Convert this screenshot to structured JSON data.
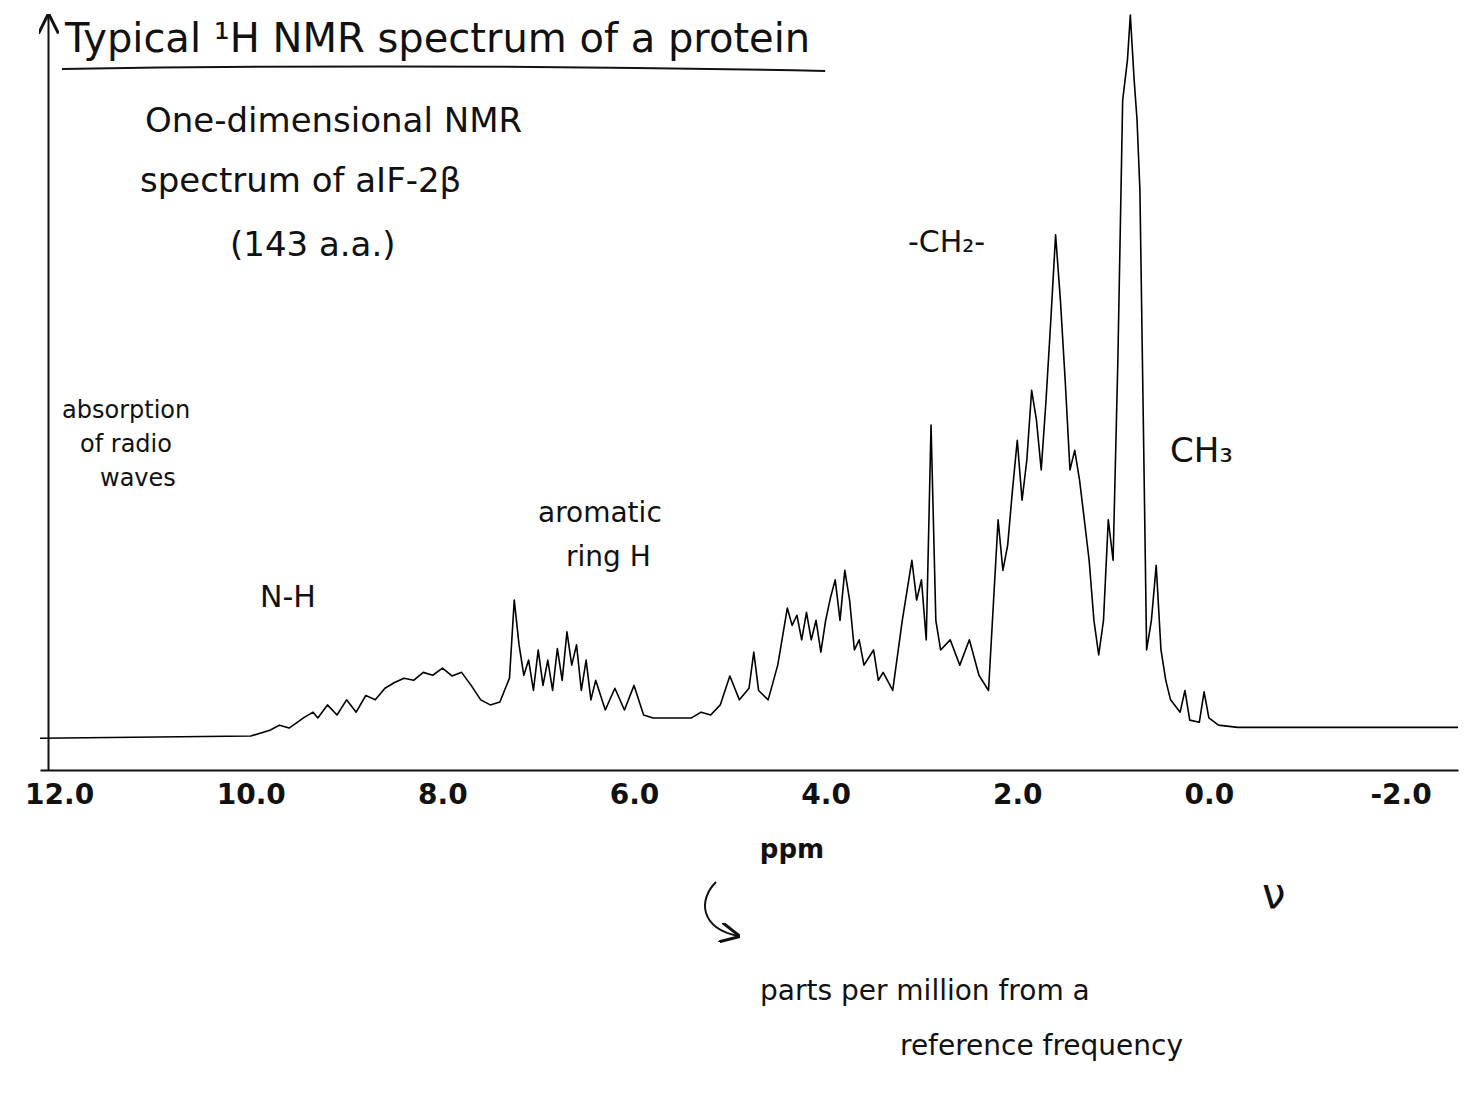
{
  "chart_data": {
    "type": "line",
    "title": "Typical ¹H NMR spectrum of a protein",
    "subtitle": [
      "One-dimensional NMR",
      "spectrum of aIF-2β",
      "(143 a.a.)"
    ],
    "ylabel": "absorption of radio waves",
    "xlabel": "ppm",
    "annotations": [
      "N-H",
      "aromatic ring H",
      "-CH₂-",
      "CH₃",
      "parts per million from a reference frequency",
      "ν"
    ],
    "color": "#000000",
    "grid": false,
    "tick_labels": "x",
    "xlim": [
      12.2,
      -2.6
    ],
    "ylim": [
      -4.4,
      100
    ],
    "xticks": [
      {
        "value": 12,
        "label": "12.0"
      },
      {
        "value": 10,
        "label": "10.0"
      },
      {
        "value": 8,
        "label": "8.0"
      },
      {
        "value": 6,
        "label": "6.0"
      },
      {
        "value": 4,
        "label": "4.0"
      },
      {
        "value": 2,
        "label": "2.0"
      },
      {
        "value": 0,
        "label": "0.0"
      },
      {
        "value": -2,
        "label": "-2.0"
      }
    ],
    "x": [
      12.2,
      10.0,
      9.8,
      9.7,
      9.6,
      9.45,
      9.35,
      9.3,
      9.2,
      9.1,
      9.0,
      8.9,
      8.8,
      8.7,
      8.6,
      8.5,
      8.4,
      8.3,
      8.2,
      8.1,
      8.0,
      7.9,
      7.8,
      7.7,
      7.6,
      7.5,
      7.4,
      7.3,
      7.25,
      7.2,
      7.15,
      7.1,
      7.05,
      7.0,
      6.95,
      6.9,
      6.85,
      6.8,
      6.75,
      6.7,
      6.65,
      6.6,
      6.55,
      6.5,
      6.45,
      6.4,
      6.3,
      6.2,
      6.1,
      6.0,
      5.9,
      5.8,
      5.6,
      5.4,
      5.3,
      5.2,
      5.1,
      5.0,
      4.9,
      4.8,
      4.75,
      4.7,
      4.6,
      4.5,
      4.4,
      4.35,
      4.3,
      4.25,
      4.2,
      4.15,
      4.1,
      4.05,
      4.0,
      3.95,
      3.9,
      3.85,
      3.8,
      3.75,
      3.7,
      3.65,
      3.6,
      3.5,
      3.45,
      3.4,
      3.3,
      3.2,
      3.1,
      3.05,
      3.0,
      2.95,
      2.9,
      2.85,
      2.8,
      2.7,
      2.6,
      2.5,
      2.4,
      2.3,
      2.2,
      2.15,
      2.1,
      2.05,
      2.0,
      1.95,
      1.9,
      1.85,
      1.8,
      1.75,
      1.7,
      1.65,
      1.6,
      1.55,
      1.5,
      1.45,
      1.4,
      1.35,
      1.3,
      1.25,
      1.2,
      1.15,
      1.1,
      1.05,
      1.0,
      0.95,
      0.9,
      0.85,
      0.82,
      0.78,
      0.75,
      0.72,
      0.68,
      0.65,
      0.6,
      0.55,
      0.5,
      0.45,
      0.4,
      0.3,
      0.25,
      0.2,
      0.1,
      0.05,
      0.0,
      -0.1,
      -0.3,
      -1.0,
      -2.6
    ],
    "values": [
      0,
      0.3,
      1.1,
      1.8,
      1.4,
      2.8,
      3.6,
      2.8,
      4.6,
      3.2,
      5.3,
      3.6,
      5.9,
      5.3,
      6.9,
      7.7,
      8.3,
      8.0,
      9.1,
      8.7,
      9.7,
      8.6,
      9.1,
      7.3,
      5.3,
      4.6,
      5.0,
      8.3,
      19.1,
      12.9,
      8.7,
      10.8,
      6.6,
      12.2,
      7.3,
      10.8,
      6.6,
      12.4,
      8.0,
      14.7,
      10.1,
      12.9,
      6.6,
      10.8,
      5.3,
      8.0,
      3.9,
      6.9,
      3.9,
      7.3,
      3.2,
      2.8,
      2.8,
      2.8,
      3.6,
      3.2,
      4.6,
      8.6,
      5.3,
      6.9,
      11.9,
      6.6,
      5.3,
      10.1,
      18.0,
      15.6,
      17.0,
      13.6,
      17.4,
      13.6,
      16.3,
      11.9,
      16.3,
      19.4,
      21.9,
      16.3,
      23.2,
      19.1,
      12.2,
      13.6,
      10.1,
      12.2,
      8.0,
      9.1,
      6.6,
      16.3,
      24.6,
      19.1,
      21.9,
      13.6,
      43.3,
      16.3,
      12.2,
      13.6,
      10.1,
      13.6,
      8.7,
      6.6,
      30.2,
      23.2,
      26.7,
      34.3,
      41.2,
      32.9,
      38.5,
      48.1,
      44.0,
      37.1,
      46.7,
      57.8,
      69.6,
      60.6,
      49.5,
      37.1,
      39.8,
      35.7,
      30.2,
      24.6,
      16.3,
      11.5,
      16.3,
      30.2,
      24.6,
      52.3,
      88.2,
      93.8,
      100,
      91.0,
      85.5,
      75.8,
      39.8,
      12.2,
      16.3,
      23.9,
      12.2,
      8.0,
      5.3,
      3.6,
      6.6,
      2.5,
      2.2,
      6.4,
      2.8,
      1.8,
      1.5,
      1.5,
      1.5
    ]
  }
}
